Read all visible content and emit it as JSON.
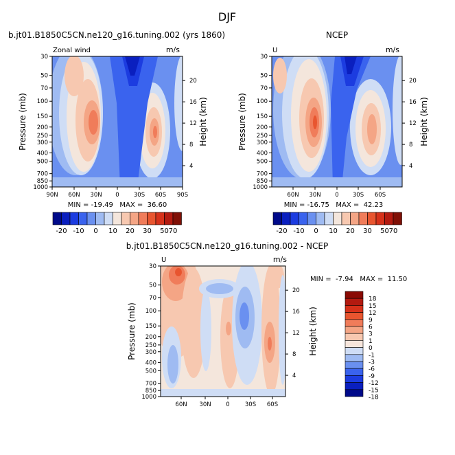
{
  "figure": {
    "title": "DJF"
  },
  "panels": [
    {
      "title": "b.jt01.B1850C5CN.ne120_g16.tuning.002 (yrs 1860)",
      "var_label": "Zonal wind",
      "units": "m/s",
      "ylabel": "Pressure (mb)",
      "ylabel_right": "Height (km)",
      "stats": "MIN = -19.49   MAX =  36.60"
    },
    {
      "title": "NCEP",
      "var_label": "U",
      "units": "m/s",
      "ylabel": "Pressure (mb)",
      "ylabel_right": "Height (km)",
      "stats": "MIN = -16.75   MAX =  42.23"
    },
    {
      "title": "b.jt01.B1850C5CN.ne120_g16.tuning.002 - NCEP",
      "var_label": "U",
      "units": "m/s",
      "ylabel": "Pressure (mb)",
      "ylabel_right": "Height (km)",
      "stats": "MIN =  -7.94   MAX =  11.50"
    }
  ],
  "chart_data": [
    {
      "type": "heatmap",
      "title": "b.jt01.B1850C5CN.ne120_g16.tuning.002 (yrs 1860)",
      "xlabel": "",
      "ylabel": "Pressure (mb)",
      "x_ticks": [
        "90N",
        "60N",
        "30N",
        "0",
        "30S",
        "60S",
        "90S"
      ],
      "y_ticks_pressure": [
        30,
        50,
        70,
        100,
        150,
        200,
        250,
        300,
        400,
        500,
        700,
        850,
        1000
      ],
      "y_ticks_height_km": [
        4,
        8,
        12,
        16,
        20
      ],
      "xlim": [
        90,
        -90
      ],
      "ylim": [
        1000,
        30
      ],
      "levels": [
        -20,
        -15,
        -10,
        -5,
        0,
        5,
        10,
        15,
        20,
        25,
        30,
        40,
        50,
        60,
        70
      ],
      "min": -19.49,
      "max": 36.6,
      "features": [
        {
          "kind": "jet_max",
          "lat": 32,
          "pressure": 200,
          "value": 36
        },
        {
          "kind": "jet_max",
          "lat": -45,
          "pressure": 200,
          "value": 33
        },
        {
          "kind": "easterly_min",
          "lat": -2,
          "pressure": 40,
          "value": -19
        }
      ]
    },
    {
      "type": "heatmap",
      "title": "NCEP",
      "xlabel": "",
      "ylabel": "Pressure (mb)",
      "x_ticks": [
        "60N",
        "30N",
        "0",
        "30S",
        "60S"
      ],
      "y_ticks_pressure": [
        30,
        50,
        70,
        100,
        150,
        200,
        250,
        300,
        400,
        500,
        700,
        850,
        1000
      ],
      "y_ticks_height_km": [
        4,
        8,
        12,
        16,
        20
      ],
      "ylim": [
        1000,
        30
      ],
      "levels": [
        -20,
        -15,
        -10,
        -5,
        0,
        5,
        10,
        15,
        20,
        25,
        30,
        40,
        50,
        60,
        70
      ],
      "min": -16.75,
      "max": 42.23,
      "features": [
        {
          "kind": "jet_max",
          "lat": 30,
          "pressure": 180,
          "value": 42
        },
        {
          "kind": "jet_max",
          "lat": -45,
          "pressure": 200,
          "value": 30
        },
        {
          "kind": "easterly_min",
          "lat": -3,
          "pressure": 45,
          "value": -16
        }
      ]
    },
    {
      "type": "heatmap",
      "title": "b.jt01.B1850C5CN.ne120_g16.tuning.002 - NCEP",
      "xlabel": "",
      "ylabel": "Pressure (mb)",
      "x_ticks": [
        "60N",
        "30N",
        "0",
        "30S",
        "60S"
      ],
      "y_ticks_pressure": [
        30,
        50,
        70,
        100,
        150,
        200,
        250,
        300,
        400,
        500,
        700,
        850,
        1000
      ],
      "y_ticks_height_km": [
        4,
        8,
        12,
        16,
        20
      ],
      "ylim": [
        1000,
        30
      ],
      "levels": [
        -18,
        -15,
        -12,
        -9,
        -6,
        -3,
        -1,
        0,
        1,
        3,
        6,
        9,
        12,
        15,
        18
      ],
      "min": -7.94,
      "max": 11.5,
      "features": [
        {
          "kind": "diff_max",
          "lat": 75,
          "pressure": 40,
          "value": 11
        },
        {
          "kind": "diff_max",
          "lat": 2,
          "pressure": 160,
          "value": 6
        },
        {
          "kind": "diff_max",
          "lat": -60,
          "pressure": 200,
          "value": 7
        },
        {
          "kind": "diff_min",
          "lat": -15,
          "pressure": 120,
          "value": -6
        },
        {
          "kind": "diff_min",
          "lat": 45,
          "pressure": 300,
          "value": -4
        }
      ]
    }
  ],
  "colorbars": {
    "horizontal": {
      "labels": [
        "-20",
        "-10",
        "0",
        "10",
        "20",
        "30",
        "50",
        "70"
      ],
      "colors": [
        "#000a8a",
        "#0a1fbf",
        "#1c3ce0",
        "#3a63ee",
        "#6a90f0",
        "#9fbbf2",
        "#cfddf5",
        "#f4e6dc",
        "#f7c8b0",
        "#f4a585",
        "#f07c5a",
        "#e8552f",
        "#d6311a",
        "#b31a10",
        "#801006"
      ]
    },
    "vertical": {
      "labels": [
        "18",
        "15",
        "12",
        "9",
        "6",
        "3",
        "1",
        "0",
        "-1",
        "-3",
        "-6",
        "-9",
        "-12",
        "-15",
        "-18"
      ],
      "colors": [
        "#8a0a04",
        "#b31a10",
        "#d6311a",
        "#e8552f",
        "#f07c5a",
        "#f4a585",
        "#f7c8b0",
        "#f7e6dc",
        "#cfddf5",
        "#9fbbf2",
        "#6a90f0",
        "#3a63ee",
        "#1c3ce0",
        "#0a1fbf",
        "#000a8a"
      ]
    }
  }
}
